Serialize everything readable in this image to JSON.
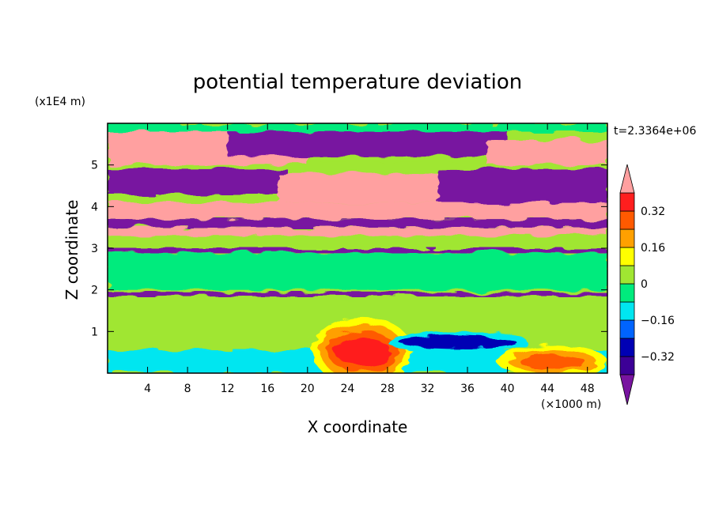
{
  "chart_data": {
    "type": "heatmap",
    "title": "potential temperature deviation",
    "xlabel": "X coordinate",
    "ylabel": "Z coordinate",
    "x_unit": "(×1000 m)",
    "y_unit": "(x1E4 m)",
    "time_label": "t=2.3364e+06",
    "xlim": [
      0,
      50
    ],
    "ylim": [
      0,
      6
    ],
    "x_ticks": [
      "4",
      "8",
      "12",
      "16",
      "20",
      "24",
      "28",
      "32",
      "36",
      "40",
      "44",
      "48"
    ],
    "y_ticks": [
      "1",
      "2",
      "3",
      "4",
      "5"
    ],
    "colorbar": {
      "levels": [
        -0.4,
        -0.32,
        -0.24,
        -0.16,
        -0.08,
        0,
        0.08,
        0.16,
        0.24,
        0.32,
        0.4
      ],
      "tick_labels": [
        "0.32",
        "0.16",
        "0",
        "−0.16",
        "−0.32"
      ],
      "tick_values": [
        0.32,
        0.16,
        0,
        -0.16,
        -0.32
      ],
      "colors": [
        "#5a0096",
        "#3c0096",
        "#0000b4",
        "#0064ff",
        "#00e6f0",
        "#00eb7d",
        "#a0e632",
        "#ffff00",
        "#ffa000",
        "#ff5a00",
        "#ff1e1e",
        "#ffa0a0"
      ],
      "under_color": "#7814a0",
      "over_color": "#ffa0a0"
    },
    "regions": [
      {
        "name": "band-top-pink-left",
        "value": 0.45,
        "x": [
          0,
          20
        ],
        "z": [
          5.0,
          5.8
        ]
      },
      {
        "name": "band-top-purple-center",
        "value": -0.45,
        "x": [
          12,
          40
        ],
        "z": [
          5.2,
          5.8
        ]
      },
      {
        "name": "band-top-pink-right",
        "value": 0.45,
        "x": [
          38,
          50
        ],
        "z": [
          5.0,
          5.6
        ]
      },
      {
        "name": "band-upper-purple-left",
        "value": -0.45,
        "x": [
          0,
          18
        ],
        "z": [
          4.3,
          4.9
        ]
      },
      {
        "name": "band-upper-pink-center",
        "value": 0.45,
        "x": [
          17,
          34
        ],
        "z": [
          4.1,
          4.8
        ]
      },
      {
        "name": "band-upper-purple-right",
        "value": -0.45,
        "x": [
          33,
          50
        ],
        "z": [
          4.0,
          4.9
        ]
      },
      {
        "name": "band-mid-pink",
        "value": 0.45,
        "x": [
          0,
          50
        ],
        "z": [
          3.7,
          4.1
        ]
      },
      {
        "name": "band-mid-purple",
        "value": -0.45,
        "x": [
          0,
          50
        ],
        "z": [
          3.5,
          3.7
        ]
      },
      {
        "name": "band-pink-low",
        "value": 0.45,
        "x": [
          0,
          50
        ],
        "z": [
          3.3,
          3.5
        ]
      },
      {
        "name": "thin-line-3",
        "value": -0.45,
        "x": [
          0,
          50
        ],
        "z": [
          2.9,
          3.0
        ]
      },
      {
        "name": "thin-line-2",
        "value": -0.45,
        "x": [
          0,
          50
        ],
        "z": [
          1.85,
          1.95
        ]
      },
      {
        "name": "hot-plume",
        "value": 0.35,
        "x": [
          20,
          30
        ],
        "z": [
          0,
          1.5
        ]
      },
      {
        "name": "cold-pool",
        "value": -0.25,
        "x": [
          28,
          42
        ],
        "z": [
          0.6,
          0.9
        ]
      },
      {
        "name": "warm-right",
        "value": 0.25,
        "x": [
          39,
          50
        ],
        "z": [
          0,
          0.8
        ]
      }
    ]
  }
}
